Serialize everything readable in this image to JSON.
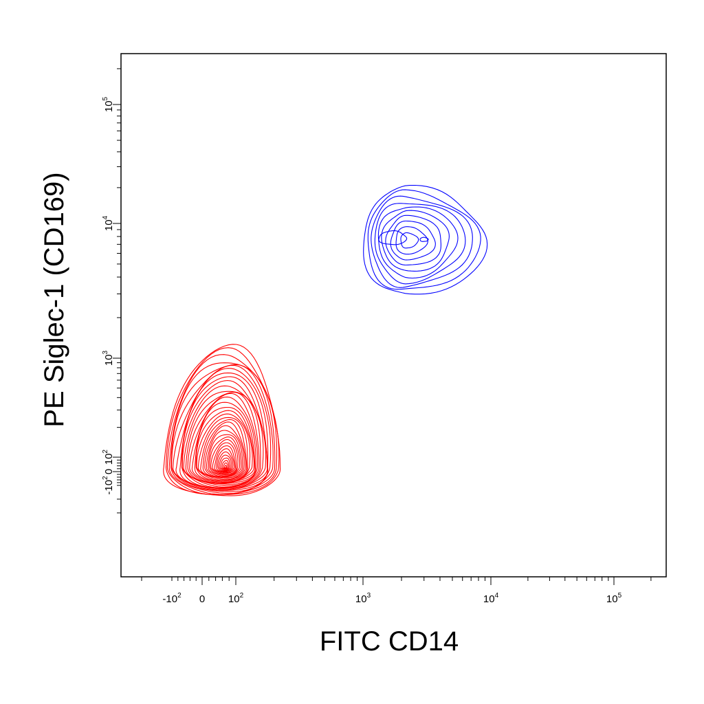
{
  "chart_data": {
    "type": "contour",
    "xlabel": "FITC  CD14",
    "ylabel": "PE  Siglec-1 (CD169)",
    "x_scale": "biexponential",
    "y_scale": "biexponential",
    "x_tick_labels": [
      {
        "base": "-10",
        "exp": "2",
        "value": -100
      },
      {
        "base": "0",
        "exp": "",
        "value": 0
      },
      {
        "base": "10",
        "exp": "2",
        "value": 100
      },
      {
        "base": "10",
        "exp": "3",
        "value": 1000
      },
      {
        "base": "10",
        "exp": "4",
        "value": 10000
      },
      {
        "base": "10",
        "exp": "5",
        "value": 100000
      }
    ],
    "y_tick_labels": [
      {
        "base": "-10",
        "exp": "2",
        "value": -100
      },
      {
        "base": "0",
        "exp": "",
        "value": 0
      },
      {
        "base": "10",
        "exp": "2",
        "value": 100
      },
      {
        "base": "10",
        "exp": "3",
        "value": 1000
      },
      {
        "base": "10",
        "exp": "4",
        "value": 10000
      },
      {
        "base": "10",
        "exp": "5",
        "value": 100000
      }
    ],
    "series": [
      {
        "color": "#ff0000",
        "center": [
          70,
          30
        ],
        "contour_levels": 36,
        "x_range": [
          -130,
          220
        ],
        "y_range": [
          -180,
          1200
        ]
      },
      {
        "color": "#0000ff",
        "center": [
          2200,
          7500
        ],
        "peaks": [
          [
            1700,
            7800
          ],
          [
            3000,
            7600
          ]
        ],
        "contour_levels": 10,
        "x_range": [
          1000,
          9000
        ],
        "y_range": [
          2900,
          20000
        ]
      }
    ]
  }
}
